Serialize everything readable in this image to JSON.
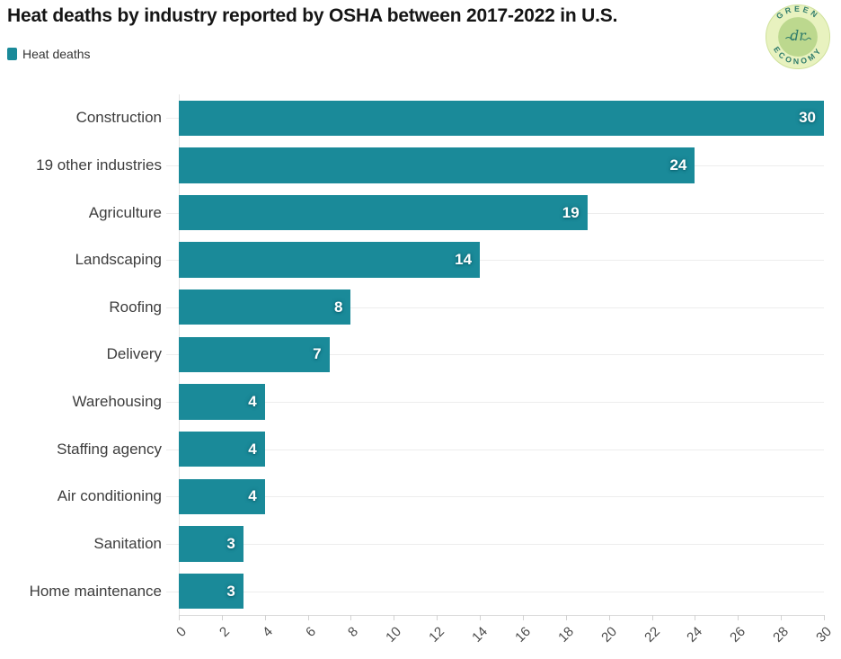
{
  "header": {
    "title": "Heat deaths by industry reported by OSHA between 2017-2022 in U.S."
  },
  "legend": {
    "label": "Heat deaths",
    "color": "#1a8a99"
  },
  "logo": {
    "top_text": "GREEN",
    "bottom_text": "ECONOMY",
    "center_text": "dr"
  },
  "chart_data": {
    "type": "bar",
    "orientation": "horizontal",
    "title": "Heat deaths by industry reported by OSHA between 2017-2022 in U.S.",
    "categories": [
      "Construction",
      "19 other industries",
      "Agriculture",
      "Landscaping",
      "Roofing",
      "Delivery",
      "Warehousing",
      "Staffing agency",
      "Air conditioning",
      "Sanitation",
      "Home maintenance"
    ],
    "series": [
      {
        "name": "Heat deaths",
        "values": [
          30,
          24,
          19,
          14,
          8,
          7,
          4,
          4,
          4,
          3,
          3
        ]
      }
    ],
    "xlabel": "",
    "ylabel": "",
    "xlim": [
      0,
      30
    ],
    "xticks": [
      0,
      2,
      4,
      6,
      8,
      10,
      12,
      14,
      16,
      18,
      20,
      22,
      24,
      26,
      28,
      30
    ],
    "bar_color": "#1a8a99",
    "value_label_position": "inside-end",
    "grid": "horizontal-row-lines",
    "legend_position": "top-left"
  }
}
